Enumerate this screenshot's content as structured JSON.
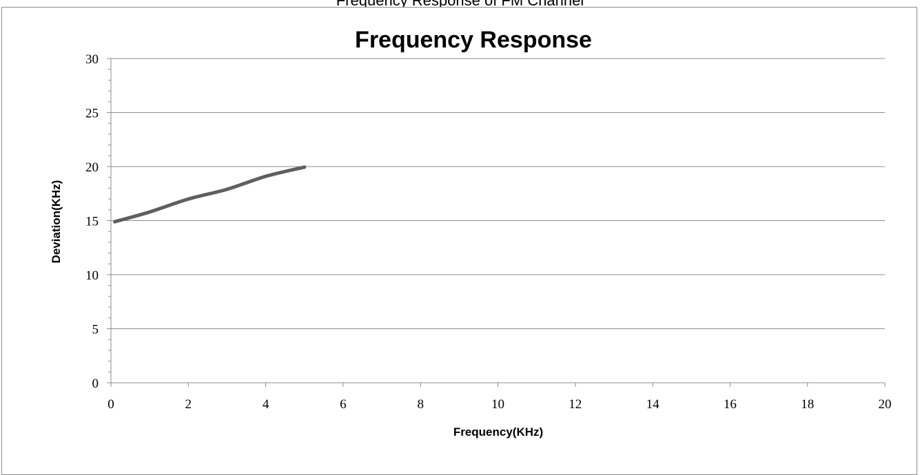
{
  "caption": "Frequency Response of FM Channel",
  "chart_data": {
    "type": "line",
    "title": "Frequency Response",
    "xlabel": "Frequency(KHz)",
    "ylabel": "Deviation(KHz)",
    "xlim": [
      0,
      20
    ],
    "ylim": [
      0,
      30
    ],
    "x_ticks": [
      0,
      2,
      4,
      6,
      8,
      10,
      12,
      14,
      16,
      18,
      20
    ],
    "y_ticks": [
      0,
      5,
      10,
      15,
      20,
      25,
      30
    ],
    "grid": "horizontal",
    "legend": "none",
    "series": [
      {
        "color": "#5f5f5f",
        "x": [
          0.1,
          1,
          2,
          3,
          4,
          5
        ],
        "y": [
          14.9,
          15.8,
          17.0,
          17.9,
          19.1,
          19.95
        ]
      }
    ]
  }
}
